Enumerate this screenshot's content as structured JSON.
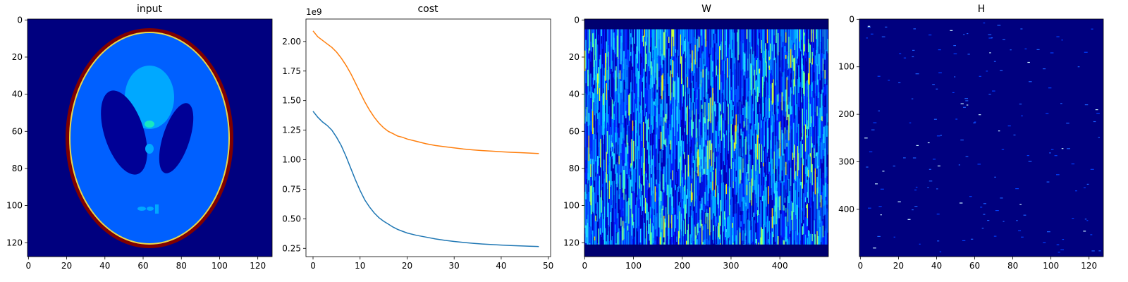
{
  "chart_data": [
    {
      "type": "heatmap",
      "title": "input",
      "colormap": "jet",
      "image_shape": [
        128,
        128
      ],
      "xlim": [
        0,
        127
      ],
      "ylim": [
        127,
        0
      ],
      "xticks": [
        "0",
        "20",
        "40",
        "60",
        "80",
        "100",
        "120"
      ],
      "yticks": [
        "0",
        "20",
        "40",
        "60",
        "80",
        "100",
        "120"
      ],
      "xtick_values": [
        0,
        20,
        40,
        60,
        80,
        100,
        120
      ],
      "ytick_values": [
        0,
        20,
        40,
        60,
        80,
        100,
        120
      ],
      "content": "Shepp-Logan phantom: outer ring at max value, body mid-blue, two dark ellipses, bright upper ellipse, small spots"
    },
    {
      "type": "line",
      "title": "cost",
      "offset_label": "1e9",
      "xlim": [
        -1.5,
        50.5
      ],
      "ylim": [
        0.18,
        2.19
      ],
      "xticks": [
        "0",
        "10",
        "20",
        "30",
        "40",
        "50"
      ],
      "xtick_values": [
        0,
        10,
        20,
        30,
        40,
        50
      ],
      "yticks": [
        "0.25",
        "0.50",
        "0.75",
        "1.00",
        "1.25",
        "1.50",
        "1.75",
        "2.00"
      ],
      "ytick_values": [
        0.25,
        0.5,
        0.75,
        1.0,
        1.25,
        1.5,
        1.75,
        2.0
      ],
      "series": [
        {
          "color": "#ff7f0e",
          "x": [
            0,
            1,
            2,
            3,
            4,
            5,
            6,
            7,
            8,
            9,
            10,
            11,
            12,
            13,
            14,
            15,
            16,
            17,
            18,
            19,
            20,
            22,
            24,
            26,
            28,
            30,
            32,
            34,
            36,
            38,
            40,
            42,
            44,
            46,
            48
          ],
          "values": [
            2.09,
            2.04,
            2.01,
            1.98,
            1.95,
            1.91,
            1.86,
            1.8,
            1.73,
            1.65,
            1.57,
            1.49,
            1.42,
            1.36,
            1.31,
            1.27,
            1.24,
            1.22,
            1.2,
            1.19,
            1.175,
            1.155,
            1.135,
            1.12,
            1.11,
            1.1,
            1.09,
            1.083,
            1.077,
            1.072,
            1.067,
            1.063,
            1.06,
            1.056,
            1.052
          ]
        },
        {
          "color": "#1f77b4",
          "x": [
            0,
            1,
            2,
            3,
            4,
            5,
            6,
            7,
            8,
            9,
            10,
            11,
            12,
            13,
            14,
            15,
            16,
            17,
            18,
            19,
            20,
            22,
            24,
            26,
            28,
            30,
            32,
            34,
            36,
            38,
            40,
            42,
            44,
            46,
            48
          ],
          "values": [
            1.41,
            1.36,
            1.32,
            1.29,
            1.25,
            1.19,
            1.12,
            1.03,
            0.93,
            0.83,
            0.74,
            0.66,
            0.6,
            0.55,
            0.51,
            0.48,
            0.455,
            0.43,
            0.41,
            0.395,
            0.38,
            0.36,
            0.345,
            0.33,
            0.318,
            0.308,
            0.3,
            0.293,
            0.287,
            0.282,
            0.278,
            0.274,
            0.271,
            0.268,
            0.265
          ]
        }
      ]
    },
    {
      "type": "heatmap",
      "title": "W",
      "colormap": "jet",
      "image_shape": [
        128,
        500
      ],
      "xlim": [
        0,
        499
      ],
      "ylim": [
        127,
        0
      ],
      "xticks": [
        "0",
        "100",
        "200",
        "300",
        "400"
      ],
      "xtick_values": [
        0,
        100,
        200,
        300,
        400
      ],
      "yticks": [
        "0",
        "20",
        "40",
        "60",
        "80",
        "100",
        "120"
      ],
      "ytick_values": [
        0,
        20,
        40,
        60,
        80,
        100,
        120
      ],
      "content": "noisy vertical streaks of blue/cyan/yellow, dark band rows 0-5 and 122-127"
    },
    {
      "type": "heatmap",
      "title": "H",
      "colormap": "jet",
      "image_shape": [
        500,
        128
      ],
      "xlim": [
        0,
        127
      ],
      "ylim": [
        499,
        0
      ],
      "xticks": [
        "0",
        "20",
        "40",
        "60",
        "80",
        "100",
        "120"
      ],
      "xtick_values": [
        0,
        20,
        40,
        60,
        80,
        100,
        120
      ],
      "yticks": [
        "0",
        "100",
        "200",
        "300",
        "400"
      ],
      "ytick_values": [
        0,
        100,
        200,
        300,
        400
      ],
      "content": "mostly dark navy with sparse bright blue dashes"
    }
  ]
}
